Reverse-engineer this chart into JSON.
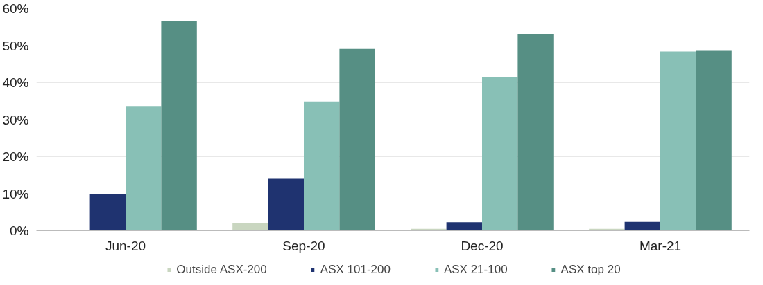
{
  "chart_data": {
    "type": "bar",
    "categories": [
      "Jun-20",
      "Sep-20",
      "Dec-20",
      "Mar-21"
    ],
    "series": [
      {
        "name": "Outside ASX-200",
        "color": "#c9d6c0",
        "values": [
          0,
          2.0,
          0.5,
          0.5
        ]
      },
      {
        "name": "ASX 101-200",
        "color": "#1f3370",
        "values": [
          9.9,
          14.0,
          2.3,
          2.4
        ]
      },
      {
        "name": "ASX 21-100",
        "color": "#88c0b6",
        "values": [
          33.7,
          34.9,
          41.5,
          48.4
        ]
      },
      {
        "name": "ASX top 20",
        "color": "#568f84",
        "values": [
          56.6,
          49.1,
          53.2,
          48.6
        ]
      }
    ],
    "ylim": [
      0,
      60
    ],
    "yticks": [
      {
        "value": 0,
        "label": "0%"
      },
      {
        "value": 10,
        "label": "10%"
      },
      {
        "value": 20,
        "label": "20%"
      },
      {
        "value": 30,
        "label": "30%"
      },
      {
        "value": 40,
        "label": "40%"
      },
      {
        "value": 50,
        "label": "50%"
      },
      {
        "value": 60,
        "label": "60%"
      }
    ],
    "grid": "y",
    "legend": "bottom"
  }
}
